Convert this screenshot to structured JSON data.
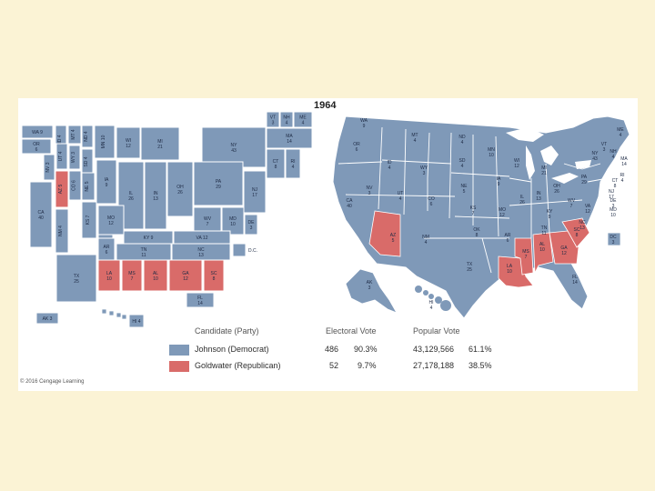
{
  "title": "1964",
  "colors": {
    "democrat": "#7f99b8",
    "republican": "#d96b69",
    "border": "#ffffff",
    "water": "#ffffff",
    "background": "#fbf3d5"
  },
  "legend": {
    "header_candidate": "Candidate (Party)",
    "header_electoral": "Electoral Vote",
    "header_popular": "Popular Vote",
    "rows": [
      {
        "name": "Johnson (Democrat)",
        "ev": "486",
        "ev_pct": "90.3%",
        "pv": "43,129,566",
        "pv_pct": "61.1%",
        "party": "democrat"
      },
      {
        "name": "Goldwater (Republican)",
        "ev": "52",
        "ev_pct": "9.7%",
        "pv": "27,178,188",
        "pv_pct": "38.5%",
        "party": "republican"
      }
    ]
  },
  "cartogram_states": [
    {
      "abbr": "WA",
      "ev": "9",
      "party": "democrat"
    },
    {
      "abbr": "OR",
      "ev": "6",
      "party": "democrat"
    },
    {
      "abbr": "ID",
      "ev": "4",
      "party": "democrat"
    },
    {
      "abbr": "MT",
      "ev": "4",
      "party": "democrat"
    },
    {
      "abbr": "ND",
      "ev": "4",
      "party": "democrat"
    },
    {
      "abbr": "MN",
      "ev": "10",
      "party": "democrat"
    },
    {
      "abbr": "WI",
      "ev": "12",
      "party": "democrat"
    },
    {
      "abbr": "MI",
      "ev": "21",
      "party": "democrat"
    },
    {
      "abbr": "NY",
      "ev": "43",
      "party": "democrat"
    },
    {
      "abbr": "VT",
      "ev": "3",
      "party": "democrat"
    },
    {
      "abbr": "NH",
      "ev": "4",
      "party": "democrat"
    },
    {
      "abbr": "ME",
      "ev": "4",
      "party": "democrat"
    },
    {
      "abbr": "MA",
      "ev": "14",
      "party": "democrat"
    },
    {
      "abbr": "CT",
      "ev": "8",
      "party": "democrat"
    },
    {
      "abbr": "RI",
      "ev": "4",
      "party": "democrat"
    },
    {
      "abbr": "NV",
      "ev": "3",
      "party": "democrat"
    },
    {
      "abbr": "UT",
      "ev": "4",
      "party": "democrat"
    },
    {
      "abbr": "WY",
      "ev": "3",
      "party": "democrat"
    },
    {
      "abbr": "SD",
      "ev": "4",
      "party": "democrat"
    },
    {
      "abbr": "CA",
      "ev": "40",
      "party": "democrat"
    },
    {
      "abbr": "AZ",
      "ev": "5",
      "party": "republican"
    },
    {
      "abbr": "CO",
      "ev": "6",
      "party": "democrat"
    },
    {
      "abbr": "NE",
      "ev": "5",
      "party": "democrat"
    },
    {
      "abbr": "IA",
      "ev": "9",
      "party": "democrat"
    },
    {
      "abbr": "IL",
      "ev": "26",
      "party": "democrat"
    },
    {
      "abbr": "IN",
      "ev": "13",
      "party": "democrat"
    },
    {
      "abbr": "OH",
      "ev": "26",
      "party": "democrat"
    },
    {
      "abbr": "PA",
      "ev": "29",
      "party": "democrat"
    },
    {
      "abbr": "NJ",
      "ev": "17",
      "party": "democrat"
    },
    {
      "abbr": "NM",
      "ev": "4",
      "party": "democrat"
    },
    {
      "abbr": "KS",
      "ev": "7",
      "party": "democrat"
    },
    {
      "abbr": "MO",
      "ev": "12",
      "party": "democrat"
    },
    {
      "abbr": "WV",
      "ev": "7",
      "party": "democrat"
    },
    {
      "abbr": "MD",
      "ev": "10",
      "party": "democrat"
    },
    {
      "abbr": "DE",
      "ev": "3",
      "party": "democrat"
    },
    {
      "abbr": "OK",
      "ev": "8",
      "party": "democrat"
    },
    {
      "abbr": "KY",
      "ev": "9",
      "party": "democrat"
    },
    {
      "abbr": "VA",
      "ev": "12",
      "party": "democrat"
    },
    {
      "abbr": "AR",
      "ev": "6",
      "party": "democrat"
    },
    {
      "abbr": "TN",
      "ev": "11",
      "party": "democrat"
    },
    {
      "abbr": "NC",
      "ev": "13",
      "party": "democrat"
    },
    {
      "abbr": "TX",
      "ev": "25",
      "party": "democrat"
    },
    {
      "abbr": "LA",
      "ev": "10",
      "party": "republican"
    },
    {
      "abbr": "MS",
      "ev": "7",
      "party": "republican"
    },
    {
      "abbr": "AL",
      "ev": "10",
      "party": "republican"
    },
    {
      "abbr": "GA",
      "ev": "12",
      "party": "republican"
    },
    {
      "abbr": "SC",
      "ev": "8",
      "party": "republican"
    },
    {
      "abbr": "FL",
      "ev": "14",
      "party": "democrat"
    },
    {
      "abbr": "AK",
      "ev": "3",
      "party": "democrat"
    },
    {
      "abbr": "HI",
      "ev": "4",
      "party": "democrat"
    },
    {
      "abbr": "D.C.",
      "ev": "",
      "party": "democrat"
    }
  ],
  "geo_labels": [
    {
      "abbr": "WA",
      "ev": "9"
    },
    {
      "abbr": "OR",
      "ev": "6"
    },
    {
      "abbr": "MT",
      "ev": "4"
    },
    {
      "abbr": "ND",
      "ev": "4"
    },
    {
      "abbr": "MN",
      "ev": "10"
    },
    {
      "abbr": "ID",
      "ev": "4"
    },
    {
      "abbr": "SD",
      "ev": "4"
    },
    {
      "abbr": "WY",
      "ev": "3"
    },
    {
      "abbr": "WI",
      "ev": "12"
    },
    {
      "abbr": "MI",
      "ev": "21"
    },
    {
      "abbr": "NV",
      "ev": "3"
    },
    {
      "abbr": "UT",
      "ev": "4"
    },
    {
      "abbr": "NE",
      "ev": "5"
    },
    {
      "abbr": "CO",
      "ev": "6"
    },
    {
      "abbr": "IA",
      "ev": "9"
    },
    {
      "abbr": "IL",
      "ev": "26"
    },
    {
      "abbr": "IN",
      "ev": "13"
    },
    {
      "abbr": "OH",
      "ev": "26"
    },
    {
      "abbr": "PA",
      "ev": "29"
    },
    {
      "abbr": "NY",
      "ev": "43"
    },
    {
      "abbr": "CA",
      "ev": "40"
    },
    {
      "abbr": "KS",
      "ev": "7"
    },
    {
      "abbr": "MO",
      "ev": "12"
    },
    {
      "abbr": "KY",
      "ev": "9"
    },
    {
      "abbr": "WV",
      "ev": "7"
    },
    {
      "abbr": "VA",
      "ev": "12"
    },
    {
      "abbr": "AZ",
      "ev": "5"
    },
    {
      "abbr": "NM",
      "ev": "4"
    },
    {
      "abbr": "OK",
      "ev": "8"
    },
    {
      "abbr": "TN",
      "ev": "11"
    },
    {
      "abbr": "NC",
      "ev": "13"
    },
    {
      "abbr": "AR",
      "ev": "6"
    },
    {
      "abbr": "MS",
      "ev": "7"
    },
    {
      "abbr": "AL",
      "ev": "10"
    },
    {
      "abbr": "GA",
      "ev": "12"
    },
    {
      "abbr": "SC",
      "ev": "8"
    },
    {
      "abbr": "TX",
      "ev": "25"
    },
    {
      "abbr": "LA",
      "ev": "10"
    },
    {
      "abbr": "FL",
      "ev": "14"
    },
    {
      "abbr": "AK",
      "ev": "3"
    },
    {
      "abbr": "HI",
      "ev": "4"
    },
    {
      "abbr": "ME",
      "ev": "4"
    },
    {
      "abbr": "VT",
      "ev": "3"
    },
    {
      "abbr": "NH",
      "ev": "4"
    },
    {
      "abbr": "MA",
      "ev": "14"
    },
    {
      "abbr": "RI",
      "ev": "4"
    },
    {
      "abbr": "CT",
      "ev": "8"
    },
    {
      "abbr": "NJ",
      "ev": "17"
    },
    {
      "abbr": "DE",
      "ev": "3"
    },
    {
      "abbr": "MD",
      "ev": "10"
    },
    {
      "abbr": "DC",
      "ev": "3"
    }
  ],
  "copyright": "© 2016 Cengage Learning"
}
